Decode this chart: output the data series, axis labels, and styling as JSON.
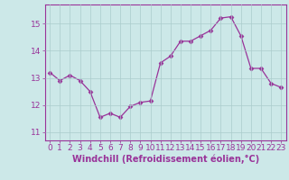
{
  "x": [
    0,
    1,
    2,
    3,
    4,
    5,
    6,
    7,
    8,
    9,
    10,
    11,
    12,
    13,
    14,
    15,
    16,
    17,
    18,
    19,
    20,
    21,
    22,
    23
  ],
  "y": [
    13.2,
    12.9,
    13.1,
    12.9,
    12.5,
    11.55,
    11.7,
    11.55,
    11.95,
    12.1,
    12.15,
    13.55,
    13.8,
    14.35,
    14.35,
    14.55,
    14.75,
    15.2,
    15.25,
    14.55,
    13.35,
    13.35,
    12.8,
    12.65
  ],
  "line_color": "#993399",
  "marker": "D",
  "marker_size": 2.5,
  "xlabel": "Windchill (Refroidissement éolien,°C)",
  "ylim": [
    10.7,
    15.7
  ],
  "xlim": [
    -0.5,
    23.5
  ],
  "yticks": [
    11,
    12,
    13,
    14,
    15
  ],
  "xticks": [
    0,
    1,
    2,
    3,
    4,
    5,
    6,
    7,
    8,
    9,
    10,
    11,
    12,
    13,
    14,
    15,
    16,
    17,
    18,
    19,
    20,
    21,
    22,
    23
  ],
  "bg_color": "#cce8e8",
  "grid_color": "#aacccc",
  "spine_color": "#993399",
  "label_color": "#993399",
  "tick_color": "#993399",
  "tick_fontsize": 6.5,
  "xlabel_fontsize": 7.0
}
